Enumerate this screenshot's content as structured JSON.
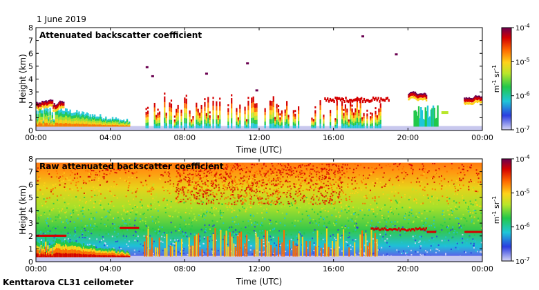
{
  "page": {
    "date": "1 June 2019",
    "footer": "Kenttarova CL31 ceilometer"
  },
  "chart_data": [
    {
      "type": "heatmap",
      "title": "Attenuated backscatter coefficient",
      "xlabel": "Time (UTC)",
      "ylabel": "Height (km)",
      "xlim": [
        "00:00",
        "00:00"
      ],
      "ylim": [
        0,
        8
      ],
      "x_ticks": [
        "00:00",
        "04:00",
        "08:00",
        "12:00",
        "16:00",
        "20:00",
        "00:00"
      ],
      "y_ticks": [
        "0",
        "1",
        "2",
        "3",
        "4",
        "5",
        "6",
        "7",
        "8"
      ],
      "colorbar": {
        "scale": "log",
        "min": "10^-7",
        "max": "10^-4",
        "ticks": [
          "10^-4",
          "10^-5",
          "10^-6",
          "10^-7"
        ],
        "unit": "m^-1 sr^-1"
      },
      "grid": false,
      "features": [
        {
          "kind": "cloud_base",
          "hours": [
            0.0,
            0.3,
            0.6,
            0.9,
            1.2,
            1.5
          ],
          "height_km": [
            1.9,
            2.0,
            2.1,
            1.8,
            2.0,
            1.9
          ]
        },
        {
          "kind": "cloud_base",
          "hours": [
            20.0,
            20.5,
            21.0
          ],
          "height_km": [
            2.7,
            2.6,
            2.7
          ]
        },
        {
          "kind": "cloud_base",
          "hours": [
            23.0,
            23.5,
            24.0
          ],
          "height_km": [
            2.3,
            2.4,
            2.4
          ]
        }
      ]
    },
    {
      "type": "heatmap",
      "title": "Raw attenuated backscatter coefficient",
      "xlabel": "Time (UTC)",
      "ylabel": "Height (km)",
      "xlim": [
        "00:00",
        "00:00"
      ],
      "ylim": [
        0,
        8
      ],
      "x_ticks": [
        "00:00",
        "04:00",
        "08:00",
        "12:00",
        "16:00",
        "20:00",
        "00:00"
      ],
      "y_ticks": [
        "0",
        "1",
        "2",
        "3",
        "4",
        "5",
        "6",
        "7",
        "8"
      ],
      "colorbar": {
        "scale": "log",
        "min": "10^-7",
        "max": "10^-4",
        "ticks": [
          "10^-4",
          "10^-5",
          "10^-6",
          "10^-7"
        ],
        "unit": "m^-1 sr^-1"
      },
      "grid": false
    }
  ],
  "colors": {
    "scale": [
      "#d6d6f5",
      "#2a3de0",
      "#1fc6d8",
      "#22c84a",
      "#b8e62a",
      "#ffd21a",
      "#ff6a00",
      "#d40000",
      "#6a0050"
    ]
  }
}
